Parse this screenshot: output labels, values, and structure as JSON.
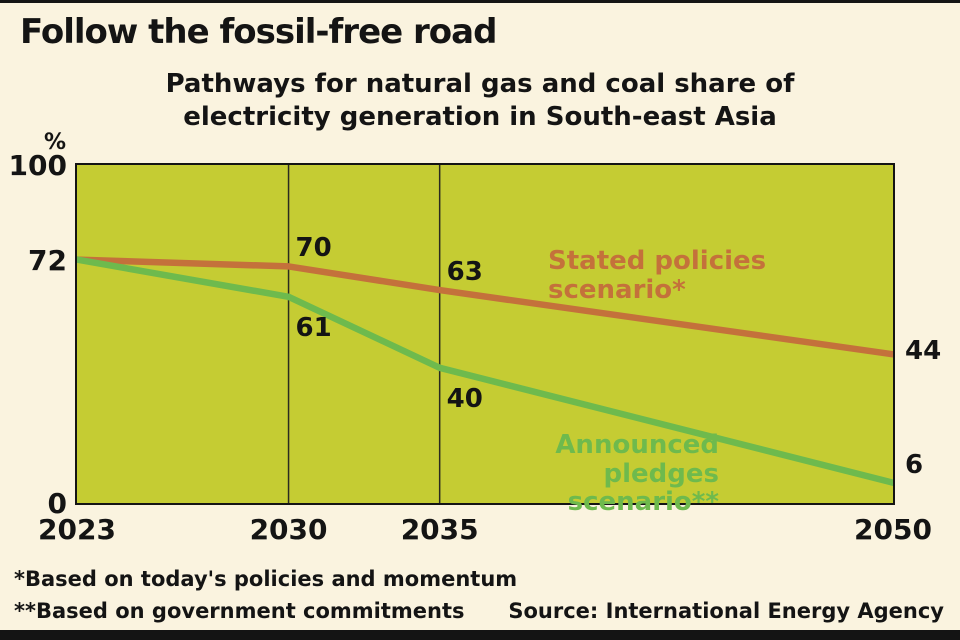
{
  "title": "Follow the fossil-free road",
  "subtitle_lines": [
    "Pathways for natural gas and coal share of",
    "electricity generation in South-east Asia"
  ],
  "footnotes": [
    "*Based on today's policies and momentum",
    "**Based on government commitments"
  ],
  "source": "Source: International Energy Agency",
  "colors": {
    "background": "#faf3df",
    "plot_fill": "#c5cc33",
    "gridline": "#2a2a20",
    "text": "#141414",
    "stated_policies": "#c4713b",
    "announced_pledges": "#6eba4d"
  },
  "chart_data": {
    "type": "line",
    "x": [
      2023,
      2030,
      2035,
      2050
    ],
    "x_tick_labels": [
      "2023",
      "2030",
      "2035",
      "2050"
    ],
    "ylabel": "%",
    "ylim": [
      0,
      100
    ],
    "y_ticks": [
      {
        "value": 100,
        "label": "100"
      },
      {
        "value": 72,
        "label": "72"
      },
      {
        "value": 0,
        "label": "0"
      }
    ],
    "gridlines_x": [
      2030,
      2035
    ],
    "grid": "vertical-only",
    "legend_position": "inline-annotations",
    "series": [
      {
        "name": "Stated policies scenario*",
        "slug": "stated-policies",
        "label_lines": [
          "Stated policies",
          "scenario*"
        ],
        "color": "#c4713b",
        "values": [
          72,
          70,
          63,
          44
        ],
        "point_labels": [
          null,
          "70",
          "63",
          "44"
        ]
      },
      {
        "name": "Announced pledges scenario**",
        "slug": "announced-pledges",
        "label_lines": [
          "Announced pledges",
          "scenario**"
        ],
        "color": "#6eba4d",
        "values": [
          72,
          61,
          40,
          6
        ],
        "point_labels": [
          null,
          "61",
          "40",
          "6"
        ]
      }
    ]
  }
}
